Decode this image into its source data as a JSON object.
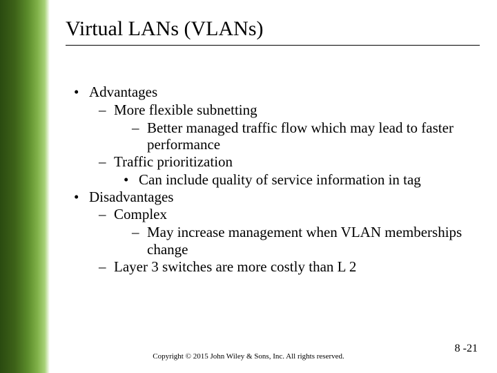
{
  "sidebar": {
    "gradient_from": "#2a4a10",
    "gradient_to": "#ffffff"
  },
  "title": "Virtual LANs (VLANs)",
  "bullets": {
    "l1_0": "Advantages",
    "l2_0": "More flexible subnetting",
    "l2_1": "Better managed traffic flow which may lead to faster performance",
    "l2_2": "Traffic prioritization",
    "l3_0": "Can include quality of service information in tag",
    "l1_1": "Disadvantages",
    "l2_3": "Complex",
    "l2_4": "May increase management when VLAN memberships change",
    "l2_5": "Layer 3 switches are more costly than L 2"
  },
  "footer": "Copyright © 2015 John Wiley & Sons, Inc. All rights reserved.",
  "page_number": "8 -21"
}
